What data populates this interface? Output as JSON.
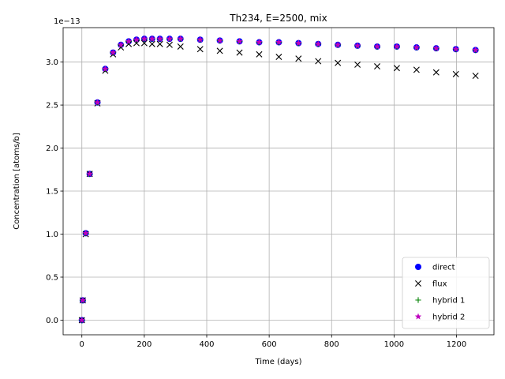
{
  "chart_data": {
    "type": "scatter",
    "title": "Th234, E=2500, mix",
    "xlabel": "Time (days)",
    "ylabel": "Concentration [atoms/b]",
    "offset_text": "1e−13",
    "xlim": [
      -60,
      1320
    ],
    "ylim": [
      -0.17,
      3.4
    ],
    "xticks": [
      0,
      200,
      400,
      600,
      800,
      1000,
      1200
    ],
    "yticks": [
      0.0,
      0.5,
      1.0,
      1.5,
      2.0,
      2.5,
      3.0
    ],
    "ytick_labels": [
      "0.0",
      "0.5",
      "1.0",
      "1.5",
      "2.0",
      "2.5",
      "3.0"
    ],
    "grid": true,
    "legend_position": "lower-right",
    "x": [
      0,
      3,
      12.5,
      25,
      50,
      75,
      100,
      125,
      150,
      175,
      200,
      225,
      250,
      281,
      316,
      379,
      442,
      505,
      568,
      631,
      694,
      757,
      820,
      883,
      946,
      1009,
      1072,
      1135,
      1198,
      1261
    ],
    "series": [
      {
        "name": "direct",
        "marker": "circle",
        "color": "#0000ff",
        "values": [
          0.0,
          0.23,
          1.01,
          1.7,
          2.53,
          2.92,
          3.11,
          3.2,
          3.24,
          3.26,
          3.27,
          3.27,
          3.27,
          3.27,
          3.27,
          3.26,
          3.25,
          3.24,
          3.23,
          3.23,
          3.22,
          3.21,
          3.2,
          3.19,
          3.18,
          3.18,
          3.17,
          3.16,
          3.15,
          3.14
        ]
      },
      {
        "name": "flux",
        "marker": "x",
        "color": "#000000",
        "values": [
          0.0,
          0.23,
          1.0,
          1.7,
          2.52,
          2.9,
          3.09,
          3.17,
          3.21,
          3.22,
          3.22,
          3.21,
          3.21,
          3.2,
          3.18,
          3.15,
          3.13,
          3.11,
          3.09,
          3.06,
          3.04,
          3.01,
          2.99,
          2.97,
          2.95,
          2.93,
          2.91,
          2.88,
          2.86,
          2.84
        ]
      },
      {
        "name": "hybrid 1",
        "marker": "plus",
        "color": "#008000",
        "values": [
          0.0,
          0.23,
          1.01,
          1.7,
          2.53,
          2.92,
          3.11,
          3.2,
          3.24,
          3.26,
          3.27,
          3.27,
          3.27,
          3.27,
          3.27,
          3.26,
          3.25,
          3.24,
          3.23,
          3.23,
          3.22,
          3.21,
          3.2,
          3.19,
          3.18,
          3.18,
          3.17,
          3.16,
          3.15,
          3.14
        ]
      },
      {
        "name": "hybrid 2",
        "marker": "star",
        "color": "#bf00bf",
        "values": [
          0.0,
          0.23,
          1.01,
          1.7,
          2.53,
          2.92,
          3.11,
          3.2,
          3.24,
          3.26,
          3.27,
          3.27,
          3.27,
          3.27,
          3.27,
          3.26,
          3.25,
          3.24,
          3.23,
          3.23,
          3.22,
          3.21,
          3.2,
          3.19,
          3.18,
          3.18,
          3.17,
          3.16,
          3.15,
          3.14
        ]
      }
    ]
  }
}
